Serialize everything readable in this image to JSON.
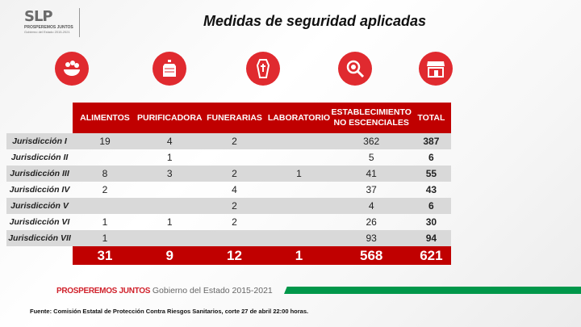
{
  "logo": {
    "mark": "SLP",
    "line1": "PROSPEREMOS JUNTOS",
    "line2": "Gobierno del Estado 2015-2021"
  },
  "title": "Medidas de seguridad aplicadas",
  "icons": [
    "food-bowl-icon",
    "water-jug-icon",
    "coffin-icon",
    "microscope-virus-icon",
    "store-icon"
  ],
  "accent": "#c00000",
  "table": {
    "headers": [
      "ALIMENTOS",
      "PURIFICADORA",
      "FUNERARIAS",
      "LABORATORIO",
      "ESTABLECIMIENTO NO ESCENCIALES",
      "TOTAL"
    ],
    "header_est_line1": "ESTABLECIMIENTO",
    "header_est_line2": "NO ESCENCIALES",
    "rows": [
      {
        "label": "Jurisdicción I",
        "cells": [
          "19",
          "4",
          "2",
          "",
          "362",
          "387"
        ]
      },
      {
        "label": "Jurisdicción II",
        "cells": [
          "",
          "1",
          "",
          "",
          "5",
          "6"
        ]
      },
      {
        "label": "Jurisdicción III",
        "cells": [
          "8",
          "3",
          "2",
          "1",
          "41",
          "55"
        ]
      },
      {
        "label": "Jurisdicción IV",
        "cells": [
          "2",
          "",
          "4",
          "",
          "37",
          "43"
        ]
      },
      {
        "label": "Jurisdicción V",
        "cells": [
          "",
          "",
          "2",
          "",
          "4",
          "6"
        ]
      },
      {
        "label": "Jurisdicción VI",
        "cells": [
          "1",
          "1",
          "2",
          "",
          "26",
          "30"
        ]
      },
      {
        "label": "Jurisdicción VII",
        "cells": [
          "1",
          "",
          "",
          "",
          "93",
          "94"
        ]
      }
    ],
    "totals": [
      "31",
      "9",
      "12",
      "1",
      "568",
      "621"
    ]
  },
  "footer": {
    "slogan": "PROSPEREMOS JUNTOS",
    "gov": "Gobierno del Estado 2015-2021",
    "green": "#00974a"
  },
  "source": "Fuente: Comisión Estatal de Protección Contra Riesgos Sanitarios, corte 27 de abril 22:00 horas."
}
